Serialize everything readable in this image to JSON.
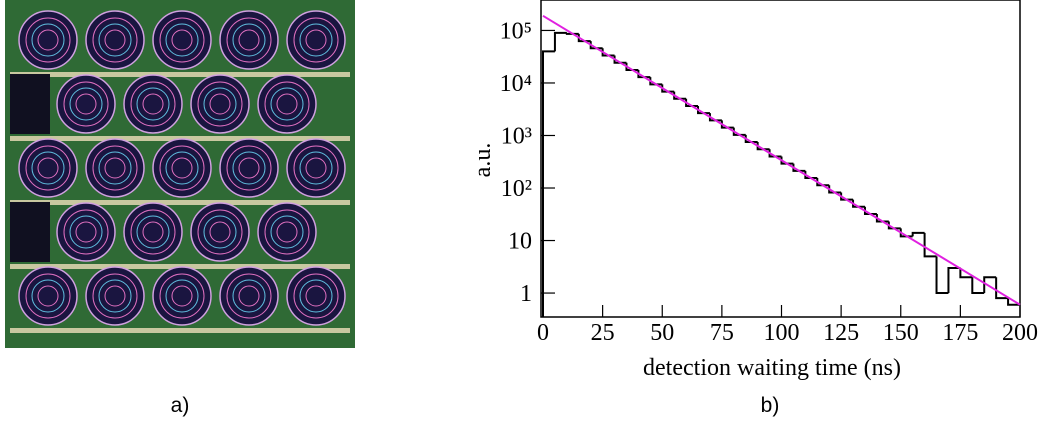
{
  "captions": [
    "a)",
    "b)"
  ],
  "chart_data": {
    "type": "histogram",
    "xlabel": "detection waiting time (ns)",
    "ylabel": "a.u.",
    "bins": [
      0,
      5,
      10,
      15,
      20,
      25,
      30,
      35,
      40,
      45,
      50,
      55,
      60,
      65,
      70,
      75,
      80,
      85,
      90,
      95,
      100,
      105,
      110,
      115,
      120,
      125,
      130,
      135,
      140,
      145,
      150,
      155,
      160,
      165,
      170,
      175,
      180,
      185,
      190,
      195,
      200
    ],
    "values": [
      40000,
      90000,
      86000,
      62700,
      45700,
      33300,
      24300,
      17700,
      12900,
      9400,
      6860,
      5000,
      3640,
      2660,
      1940,
      1410,
      1030,
      750,
      547,
      399,
      291,
      212,
      155,
      113,
      82,
      60,
      44,
      32,
      23,
      17,
      12,
      14,
      5,
      1,
      3,
      2,
      1,
      2,
      0.8,
      0.6
    ],
    "color": "#000000",
    "fit": {
      "x": [
        0,
        200
      ],
      "values": [
        190000,
        0.6
      ],
      "color": "#e020e0"
    },
    "log_y": true,
    "xlim": [
      0,
      200
    ],
    "ylim": [
      0.35,
      380000
    ],
    "xticks": [
      0,
      25,
      50,
      75,
      100,
      125,
      150,
      175,
      200
    ],
    "yticks": [
      1,
      10,
      {
        "value": 100,
        "label": "10²"
      },
      {
        "value": 1000,
        "label": "10³"
      },
      {
        "value": 10000,
        "label": "10⁴"
      },
      {
        "value": 100000,
        "label": "10⁵"
      }
    ]
  }
}
